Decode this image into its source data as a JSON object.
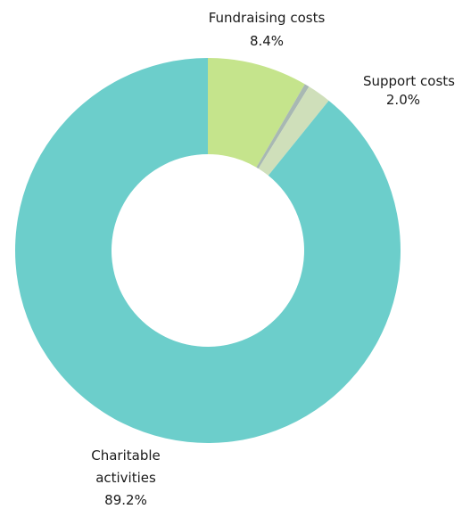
{
  "chart_data": {
    "type": "pie",
    "donut": true,
    "start_angle_deg": 0,
    "direction": "clockwise",
    "slices": [
      {
        "name": "Fundraising costs",
        "value": 8.4,
        "label_lines": [
          "Fundraising costs"
        ],
        "value_label": "8.4%",
        "color": "#c5e48c"
      },
      {
        "name": "",
        "value": 0.4,
        "label_lines": [],
        "value_label": "",
        "color": "#a8b8b3"
      },
      {
        "name": "Support costs",
        "value": 2.0,
        "label_lines": [
          "Support costs"
        ],
        "value_label": "2.0%",
        "color": "#cfdfba"
      },
      {
        "name": "Charitable activities",
        "value": 89.2,
        "label_lines": [
          "Charitable",
          "activities"
        ],
        "value_label": "89.2%",
        "color": "#6ccecb"
      }
    ]
  }
}
